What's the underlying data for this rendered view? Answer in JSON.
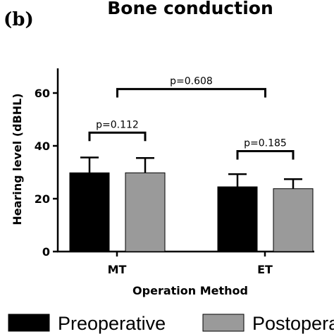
{
  "panel_label": "(b)",
  "chart_data": {
    "type": "bar",
    "title": "Bone conduction",
    "xlabel": "Operation Method",
    "ylabel": "Hearing level (dBHL)",
    "ylim": [
      0,
      70
    ],
    "yticks": [
      0,
      20,
      40,
      60
    ],
    "categories": [
      "MT",
      "ET"
    ],
    "series": [
      {
        "name": "Preoperative",
        "color": "#000000",
        "values": [
          29.8,
          24.5
        ],
        "error": [
          5.8,
          4.8
        ]
      },
      {
        "name": "Postoperative",
        "color": "#9a9a9a",
        "values": [
          29.8,
          23.8
        ],
        "error": [
          5.6,
          3.6
        ]
      }
    ],
    "comparisons": [
      {
        "label": "p=0.112",
        "from": [
          0,
          0
        ],
        "to": [
          0,
          1
        ],
        "y": 45
      },
      {
        "label": "p=0.185",
        "from": [
          1,
          0
        ],
        "to": [
          1,
          1
        ],
        "y": 38
      },
      {
        "label": "p=0.608",
        "from": [
          0,
          0.5
        ],
        "to": [
          1,
          0.5
        ],
        "y": 61.5
      }
    ],
    "legend_position": "bottom",
    "grid": false
  }
}
